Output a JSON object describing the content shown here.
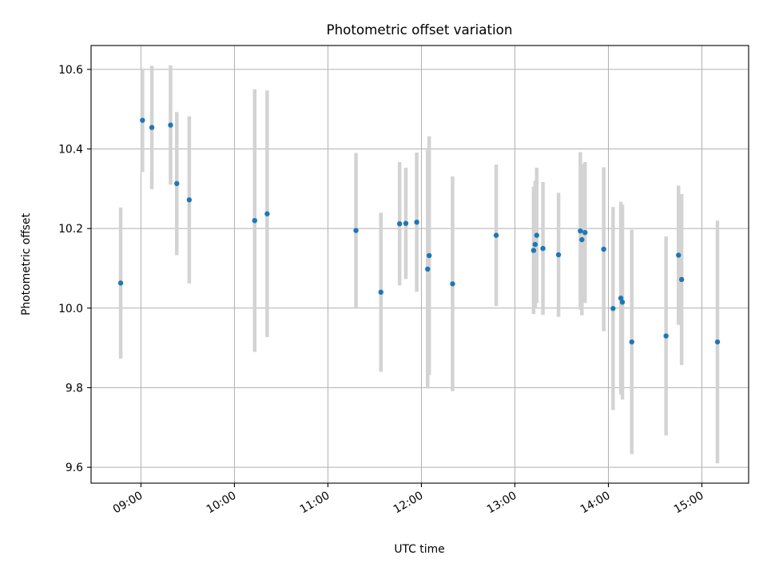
{
  "chart_data": {
    "type": "scatter",
    "title": "Photometric offset variation",
    "xlabel": "UTC time",
    "ylabel": "Photometric offset",
    "xlim": [
      "08:28",
      "15:30"
    ],
    "ylim": [
      9.56,
      10.66
    ],
    "x_ticks": [
      "09:00",
      "10:00",
      "11:00",
      "12:00",
      "13:00",
      "14:00",
      "15:00"
    ],
    "y_ticks": [
      "9.6",
      "9.8",
      "10.0",
      "10.2",
      "10.4",
      "10.6"
    ],
    "grid": true,
    "colors": {
      "point": "#1f77b4",
      "errorbar": "#d3d3d3",
      "grid": "#b0b0b0"
    },
    "points": [
      {
        "x": "08:47",
        "y": 10.063,
        "yerr": 0.19
      },
      {
        "x": "09:01",
        "y": 10.472,
        "yerr": 0.13
      },
      {
        "x": "09:07",
        "y": 10.454,
        "yerr": 0.155
      },
      {
        "x": "09:19",
        "y": 10.46,
        "yerr": 0.15
      },
      {
        "x": "09:23",
        "y": 10.313,
        "yerr": 0.18
      },
      {
        "x": "09:31",
        "y": 10.272,
        "yerr": 0.21
      },
      {
        "x": "10:13",
        "y": 10.22,
        "yerr": 0.33
      },
      {
        "x": "10:21",
        "y": 10.237,
        "yerr": 0.31
      },
      {
        "x": "11:18",
        "y": 10.195,
        "yerr": 0.195
      },
      {
        "x": "11:34",
        "y": 10.04,
        "yerr": 0.2
      },
      {
        "x": "11:46",
        "y": 10.212,
        "yerr": 0.155
      },
      {
        "x": "11:50",
        "y": 10.213,
        "yerr": 0.14
      },
      {
        "x": "11:57",
        "y": 10.216,
        "yerr": 0.175
      },
      {
        "x": "12:04",
        "y": 10.098,
        "yerr": 0.3
      },
      {
        "x": "12:05",
        "y": 10.132,
        "yerr": 0.3
      },
      {
        "x": "12:20",
        "y": 10.061,
        "yerr": 0.27
      },
      {
        "x": "12:48",
        "y": 10.183,
        "yerr": 0.178
      },
      {
        "x": "13:12",
        "y": 10.145,
        "yerr": 0.16
      },
      {
        "x": "13:13",
        "y": 10.16,
        "yerr": 0.16
      },
      {
        "x": "13:14",
        "y": 10.183,
        "yerr": 0.17
      },
      {
        "x": "13:18",
        "y": 10.15,
        "yerr": 0.167
      },
      {
        "x": "13:28",
        "y": 10.134,
        "yerr": 0.156
      },
      {
        "x": "13:42",
        "y": 10.194,
        "yerr": 0.198
      },
      {
        "x": "13:43",
        "y": 10.172,
        "yerr": 0.19
      },
      {
        "x": "13:45",
        "y": 10.19,
        "yerr": 0.177
      },
      {
        "x": "13:57",
        "y": 10.148,
        "yerr": 0.206
      },
      {
        "x": "14:03",
        "y": 9.999,
        "yerr": 0.255
      },
      {
        "x": "14:08",
        "y": 10.025,
        "yerr": 0.242
      },
      {
        "x": "14:09",
        "y": 10.015,
        "yerr": 0.245
      },
      {
        "x": "14:15",
        "y": 9.915,
        "yerr": 0.282
      },
      {
        "x": "14:37",
        "y": 9.93,
        "yerr": 0.25
      },
      {
        "x": "14:45",
        "y": 10.133,
        "yerr": 0.175
      },
      {
        "x": "14:47",
        "y": 10.072,
        "yerr": 0.215
      },
      {
        "x": "15:10",
        "y": 9.915,
        "yerr": 0.305
      }
    ]
  }
}
